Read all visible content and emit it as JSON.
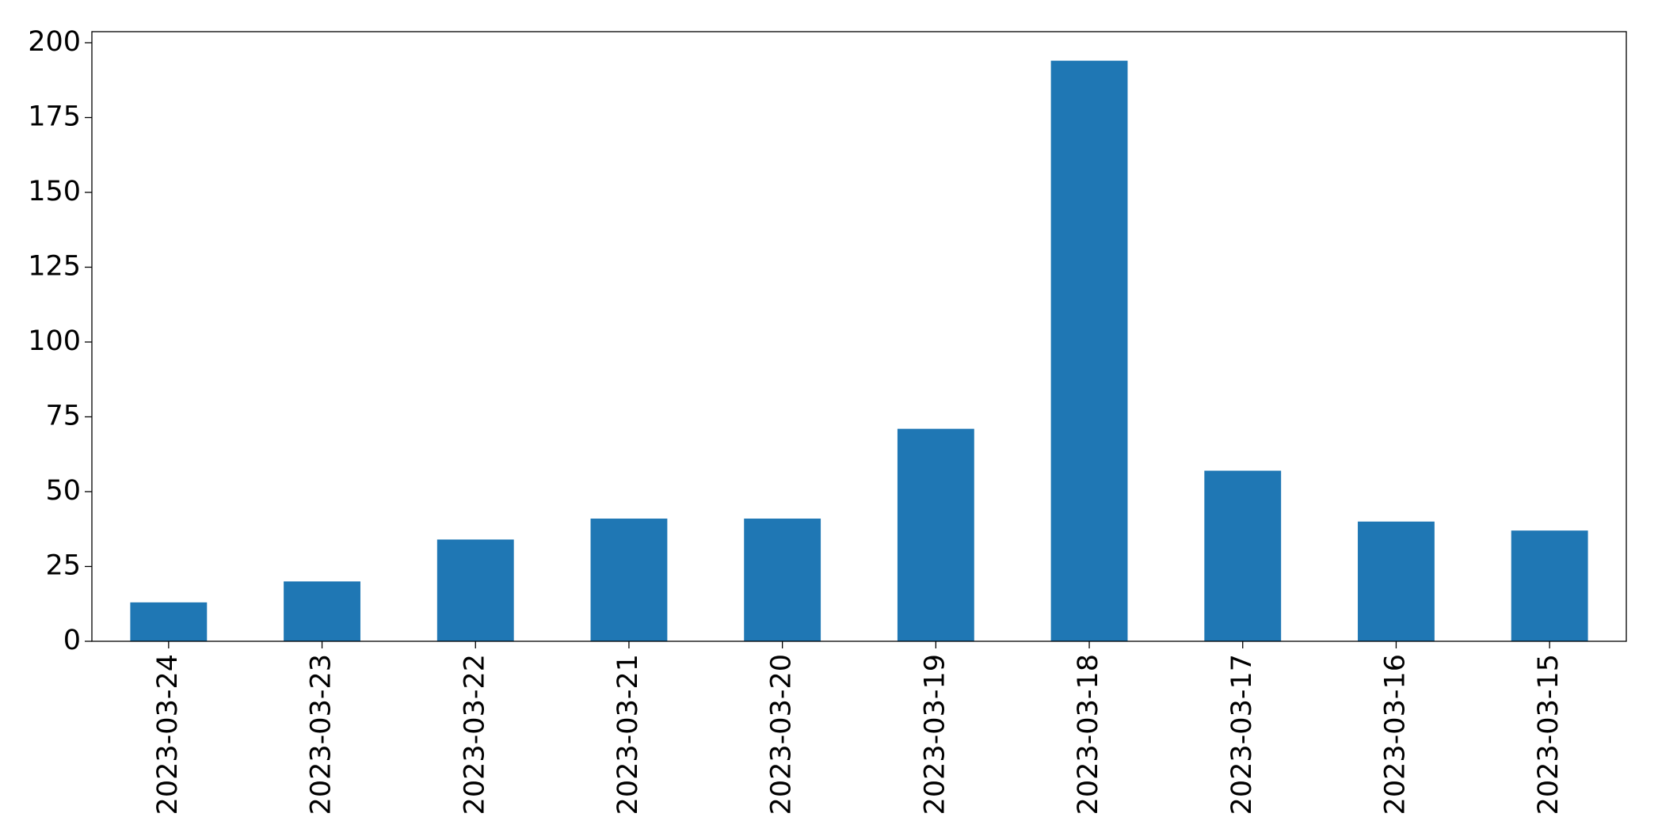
{
  "chart_data": {
    "type": "bar",
    "categories": [
      "2023-03-24",
      "2023-03-23",
      "2023-03-22",
      "2023-03-21",
      "2023-03-20",
      "2023-03-19",
      "2023-03-18",
      "2023-03-17",
      "2023-03-16",
      "2023-03-15"
    ],
    "values": [
      13,
      20,
      34,
      41,
      41,
      71,
      194,
      57,
      40,
      37
    ],
    "color": "#1f77b4",
    "ylim": [
      0,
      203.7
    ],
    "yticks": [
      0,
      25,
      50,
      75,
      100,
      125,
      150,
      175,
      200
    ],
    "grid": false
  }
}
